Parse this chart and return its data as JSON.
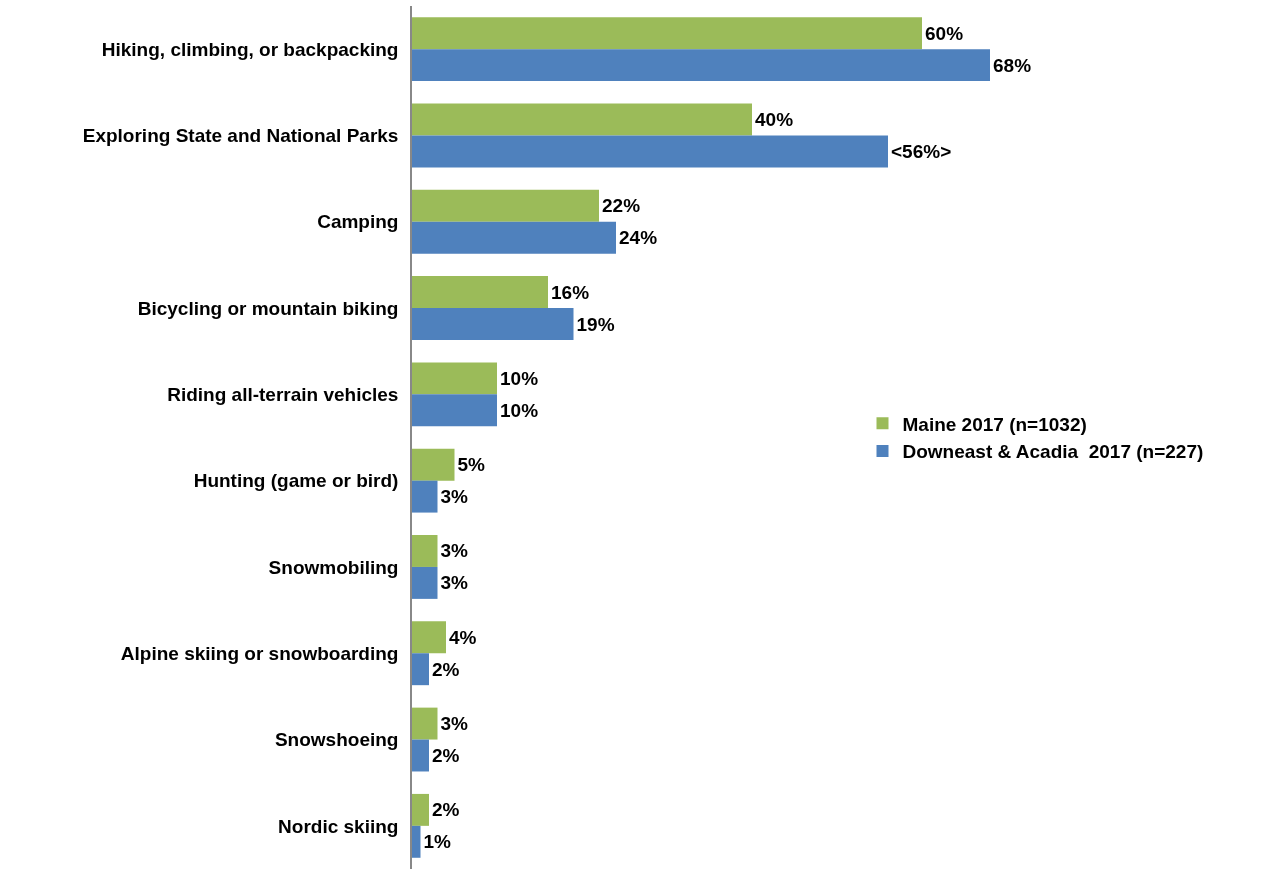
{
  "chart_data": {
    "type": "bar",
    "orientation": "horizontal",
    "categories": [
      "Hiking, climbing, or backpacking",
      "Exploring State and National Parks",
      "Camping",
      "Bicycling or mountain biking",
      "Riding all-terrain vehicles",
      "Hunting (game or bird)",
      "Snowmobiling",
      "Alpine skiing or snowboarding",
      "Snowshoeing",
      "Nordic skiing"
    ],
    "series": [
      {
        "name": "Maine 2017 (n=1032)",
        "color": "#9bbb59",
        "values": [
          60,
          40,
          22,
          16,
          10,
          5,
          3,
          4,
          3,
          2
        ],
        "value_labels": [
          "60%",
          "40%",
          "22%",
          "16%",
          "10%",
          "5%",
          "3%",
          "4%",
          "3%",
          "2%"
        ]
      },
      {
        "name": "Downeast & Acadia  2017 (n=227)",
        "color": "#4f81bd",
        "values": [
          68,
          56,
          24,
          19,
          10,
          3,
          3,
          2,
          2,
          1
        ],
        "value_labels": [
          "68%",
          "<56%>",
          "24%",
          "19%",
          "10%",
          "3%",
          "3%",
          "2%",
          "2%",
          "1%"
        ]
      }
    ],
    "xlim": [
      0,
      100
    ],
    "tick_labels": "y",
    "legend": "right"
  }
}
